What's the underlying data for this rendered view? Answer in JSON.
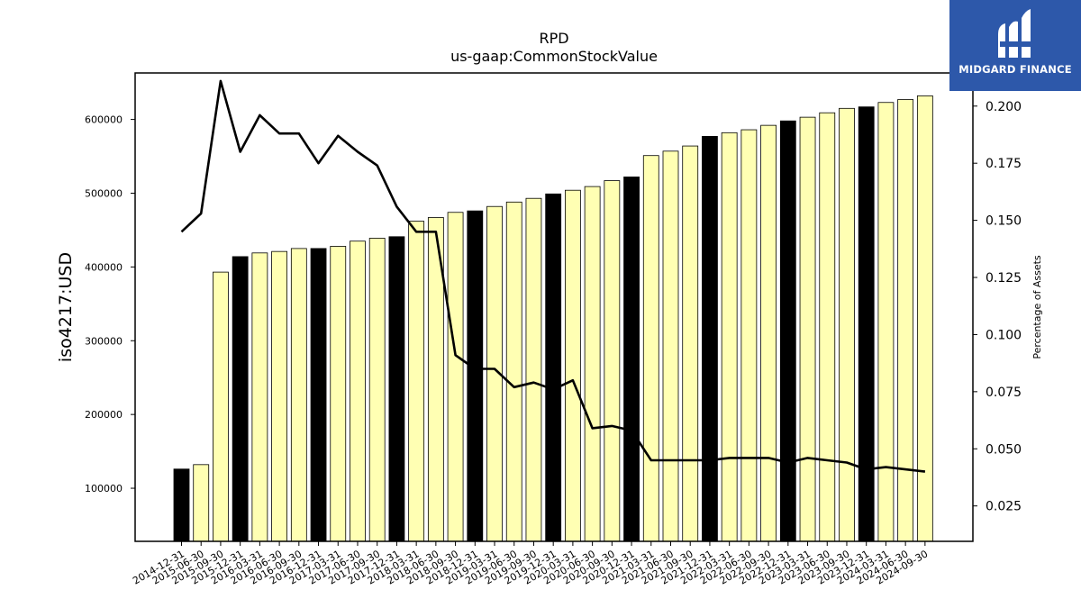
{
  "chart_data": {
    "type": "bar",
    "title": "RPD",
    "subtitle": "us-gaap:CommonStockValue",
    "ylabel": "iso4217:USD",
    "y2label": "Percentage of Assets",
    "ylim": [
      28000,
      663000
    ],
    "y2lim": [
      0.0095,
      0.2145
    ],
    "yticks": [
      100000,
      200000,
      300000,
      400000,
      500000,
      600000
    ],
    "y2ticks": [
      0.025,
      0.05,
      0.075,
      0.1,
      0.125,
      0.15,
      0.175,
      0.2
    ],
    "categories": [
      "2014-12-31",
      "2015-06-30",
      "2015-09-30",
      "2015-12-31",
      "2016-03-31",
      "2016-06-30",
      "2016-09-30",
      "2016-12-31",
      "2017-03-31",
      "2017-06-30",
      "2017-09-30",
      "2017-12-31",
      "2018-03-31",
      "2018-06-30",
      "2018-09-30",
      "2018-12-31",
      "2019-03-31",
      "2019-06-30",
      "2019-09-30",
      "2019-12-31",
      "2020-03-31",
      "2020-06-30",
      "2020-09-30",
      "2020-12-31",
      "2021-03-31",
      "2021-06-30",
      "2021-09-30",
      "2021-12-31",
      "2022-03-31",
      "2022-06-30",
      "2022-09-30",
      "2022-12-31",
      "2023-03-31",
      "2023-06-30",
      "2023-09-30",
      "2023-12-31",
      "2024-03-31",
      "2024-06-30",
      "2024-09-30"
    ],
    "series": [
      {
        "kind": "bar",
        "values": [
          126000,
          132000,
          393000,
          414000,
          419000,
          421000,
          425000,
          425000,
          428000,
          435000,
          439000,
          441000,
          462000,
          467000,
          474000,
          476000,
          482000,
          488000,
          493000,
          499000,
          504000,
          509000,
          517000,
          522000,
          551000,
          557000,
          564000,
          577000,
          582000,
          586000,
          592000,
          598000,
          603000,
          609000,
          615000,
          617000,
          623000,
          627000,
          632000
        ],
        "highlight": [
          true,
          false,
          false,
          true,
          false,
          false,
          false,
          true,
          false,
          false,
          false,
          true,
          false,
          false,
          false,
          true,
          false,
          false,
          false,
          true,
          false,
          false,
          false,
          true,
          false,
          false,
          false,
          true,
          false,
          false,
          false,
          true,
          false,
          false,
          false,
          true,
          false,
          false,
          false
        ]
      },
      {
        "kind": "line",
        "axis": "right",
        "values": [
          0.145,
          0.153,
          0.211,
          0.18,
          0.196,
          0.188,
          0.188,
          0.175,
          0.187,
          0.18,
          0.174,
          0.156,
          0.145,
          0.145,
          0.091,
          0.085,
          0.085,
          0.077,
          0.079,
          0.076,
          0.08,
          0.059,
          0.06,
          0.058,
          0.045,
          0.045,
          0.045,
          0.045,
          0.046,
          0.046,
          0.046,
          0.044,
          0.046,
          0.045,
          0.044,
          0.041,
          0.042,
          0.041,
          0.04
        ]
      }
    ],
    "colors": {
      "bar_fill": "#ffffb3",
      "bar_highlight": "#000000",
      "line": "#000000"
    }
  },
  "logo": {
    "text": "MIDGARD FINANCE",
    "background": "#2d58aa"
  }
}
